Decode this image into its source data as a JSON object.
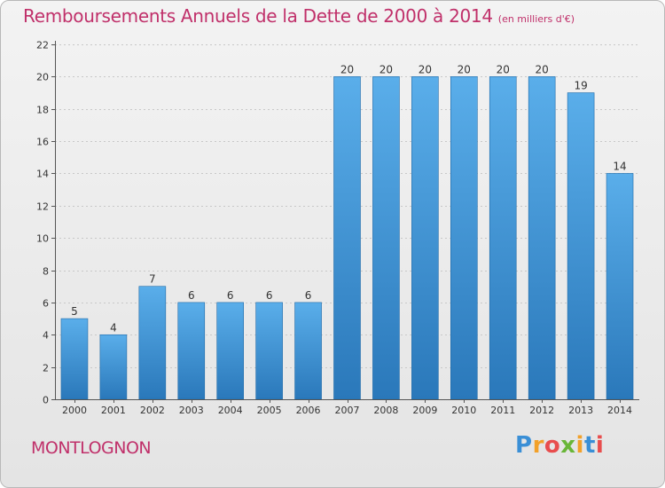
{
  "header": {
    "title": "Remboursements Annuels de la Dette de 2000 à 2014",
    "subtitle": "(en milliers d'€)"
  },
  "footer": {
    "commune": "MONTLOGNON",
    "brand_letters": [
      "P",
      "r",
      "o",
      "x",
      "i",
      "t",
      "i"
    ]
  },
  "colors": {
    "title": "#c0306a",
    "bar_top": "#5aaeea",
    "bar_bottom": "#2a78ba",
    "brand": [
      "#3a8fd6",
      "#f2a12a",
      "#e84d4d",
      "#69b638",
      "#f2a12a",
      "#3a8fd6",
      "#e84d4d"
    ]
  },
  "chart_data": {
    "type": "bar",
    "categories": [
      "2000",
      "2001",
      "2002",
      "2003",
      "2004",
      "2005",
      "2006",
      "2007",
      "2008",
      "2009",
      "2010",
      "2011",
      "2012",
      "2013",
      "2014"
    ],
    "values": [
      5,
      4,
      7,
      6,
      6,
      6,
      6,
      20,
      20,
      20,
      20,
      20,
      20,
      19,
      14
    ],
    "ylim": [
      0,
      22
    ],
    "yticks": [
      0,
      2,
      4,
      6,
      8,
      10,
      12,
      14,
      16,
      18,
      20,
      22
    ],
    "grid": true
  }
}
